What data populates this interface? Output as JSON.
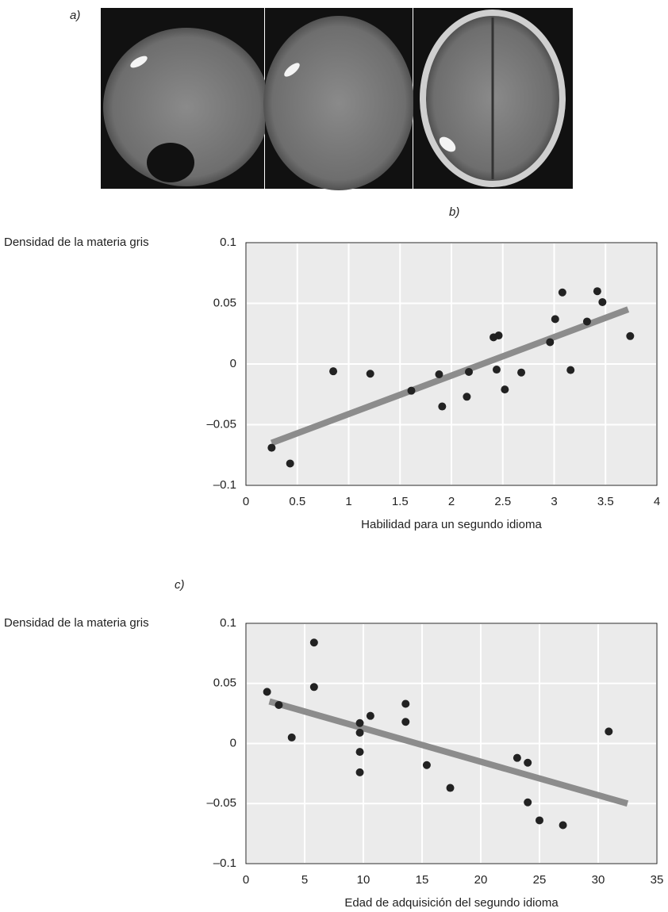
{
  "figure_labels": [
    "a)",
    "b)",
    "c)"
  ],
  "chart_data": [
    {
      "type": "scatter",
      "ylabel": "Densidad de la materia gris",
      "xlabel": "Habilidad para un segundo idioma",
      "x": [
        0.25,
        0.43,
        0.85,
        1.21,
        1.61,
        1.88,
        1.91,
        2.15,
        2.17,
        2.41,
        2.46,
        2.44,
        2.52,
        2.68,
        2.96,
        3.01,
        3.08,
        3.16,
        3.32,
        3.42,
        3.47,
        3.74
      ],
      "y": [
        -0.069,
        -0.082,
        -0.006,
        -0.008,
        -0.022,
        -0.0085,
        -0.035,
        -0.027,
        -0.0065,
        0.022,
        0.0235,
        -0.0046,
        -0.021,
        -0.007,
        0.018,
        0.037,
        0.059,
        -0.005,
        0.035,
        0.06,
        0.051,
        0.023
      ],
      "color": "#222222",
      "trend": {
        "x": [
          0.25,
          3.72
        ],
        "y": [
          -0.065,
          0.045
        ],
        "color": "#8c8c8c"
      },
      "xlim": [
        0,
        4
      ],
      "ylim": [
        -0.1,
        0.1
      ],
      "xticks": [
        0,
        0.5,
        1,
        1.5,
        2,
        2.5,
        3,
        3.5,
        4
      ],
      "yticks": [
        {
          "value": -0.1,
          "label": "–0.1"
        },
        {
          "value": -0.05,
          "label": "–0.05"
        },
        0,
        0.05,
        0.1
      ],
      "grid": true
    },
    {
      "type": "scatter",
      "ylabel": "Densidad de la materia gris",
      "xlabel": "Edad de adquisición del segundo idioma",
      "x": [
        1.8,
        2.8,
        3.9,
        5.8,
        5.8,
        9.7,
        9.7,
        9.7,
        9.7,
        10.6,
        13.6,
        13.6,
        15.4,
        17.4,
        23.1,
        24.0,
        24.0,
        25.0,
        27.0,
        30.9
      ],
      "y": [
        0.043,
        0.032,
        0.005,
        0.084,
        0.047,
        0.017,
        0.009,
        -0.007,
        -0.024,
        0.023,
        0.033,
        0.018,
        -0.018,
        -0.037,
        -0.012,
        -0.016,
        -0.049,
        -0.064,
        -0.068,
        0.01
      ],
      "color": "#222222",
      "trend": {
        "x": [
          2,
          32.5
        ],
        "y": [
          0.035,
          -0.05
        ],
        "color": "#8c8c8c"
      },
      "xlim": [
        0,
        35
      ],
      "ylim": [
        -0.1,
        0.1
      ],
      "xticks": [
        0,
        5,
        10,
        15,
        20,
        25,
        30,
        35
      ],
      "yticks": [
        {
          "value": -0.1,
          "label": "–0.1"
        },
        {
          "value": -0.05,
          "label": "–0.05"
        },
        0,
        0.05,
        0.1
      ],
      "grid": true
    }
  ]
}
